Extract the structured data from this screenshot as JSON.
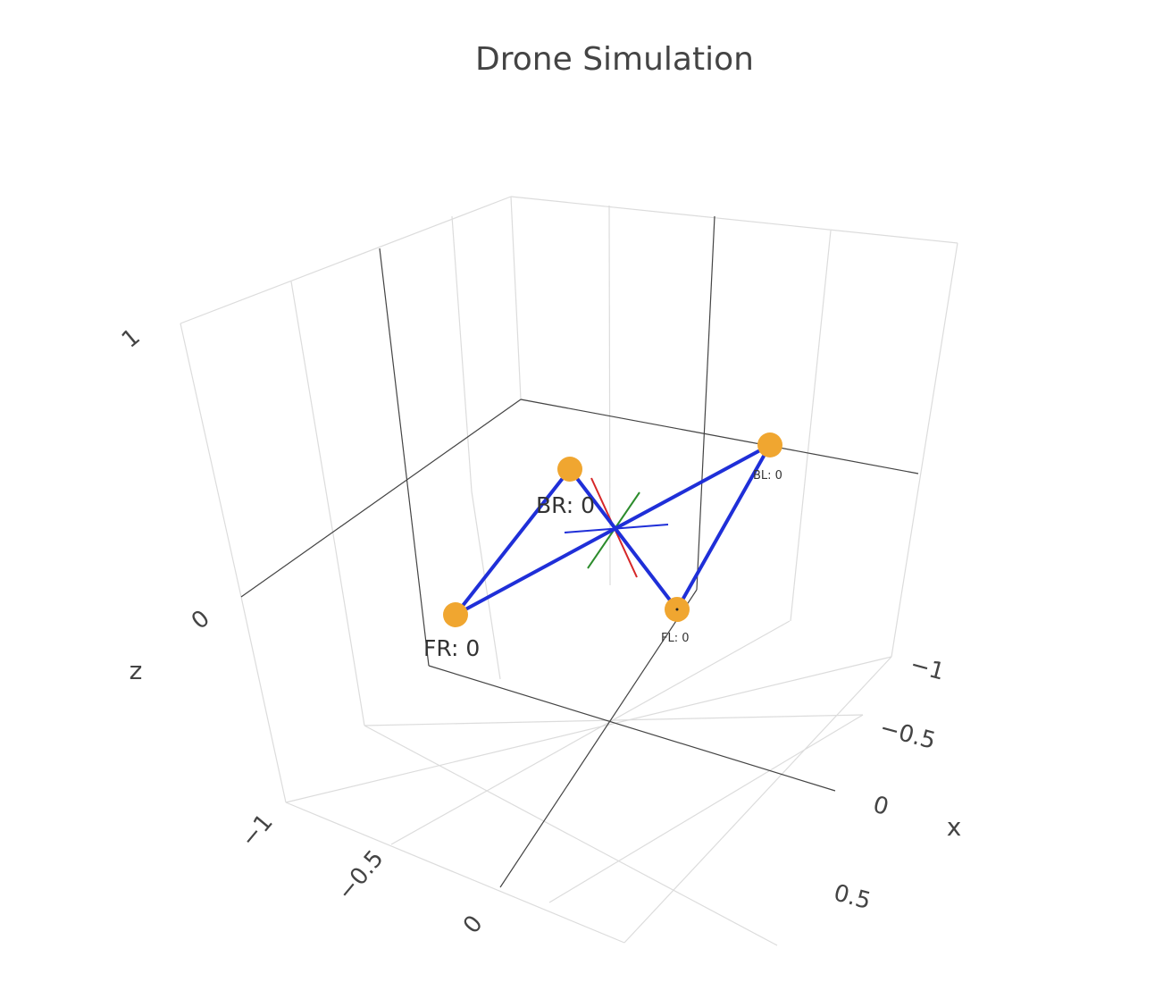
{
  "chart_data": {
    "type": "scatter3d",
    "title": "Drone Simulation",
    "axes": {
      "x": {
        "label": "x",
        "ticks": [
          "−1",
          "−0.5",
          "0",
          "0.5"
        ]
      },
      "y": {
        "label": "",
        "ticks": [
          "−1",
          "−0.5",
          "0"
        ]
      },
      "z": {
        "label": "z",
        "ticks": [
          "0",
          "1"
        ]
      }
    },
    "grid": true,
    "rotors": [
      {
        "name": "FR",
        "label": "FR: 0",
        "value": 0
      },
      {
        "name": "BR",
        "label": "BR: 0",
        "value": 0
      },
      {
        "name": "FL",
        "label": "FL: 0",
        "value": 0
      },
      {
        "name": "BL",
        "label": "BL: 0",
        "value": 0
      }
    ],
    "colors": {
      "frame": "#1f2fd8",
      "rotor": "#f0a630",
      "axis_x": "#d62728",
      "axis_y": "#2c8c2c",
      "axis_z": "#1f2fd8",
      "grid": "#dcdcdc",
      "axis_line": "#444444"
    }
  }
}
